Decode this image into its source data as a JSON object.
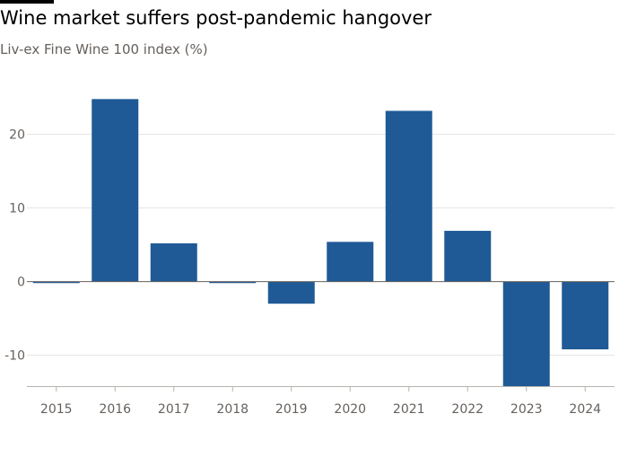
{
  "title": "Wine market suffers post-pandemic hangover",
  "subtitle": "Liv-ex Fine Wine 100 index (%)",
  "colors": {
    "bar": "#1f5a96",
    "grid": "#e6e3e0",
    "axis": "#b8b3ae",
    "zero_line": "#66605c"
  },
  "chart_data": {
    "type": "bar",
    "categories": [
      "2015",
      "2016",
      "2017",
      "2018",
      "2019",
      "2020",
      "2021",
      "2022",
      "2023",
      "2024"
    ],
    "values": [
      -0.2,
      24.8,
      5.2,
      -0.2,
      -3.0,
      5.4,
      23.2,
      6.9,
      -14.2,
      -9.2
    ],
    "yticks": [
      -10,
      0,
      10,
      20
    ],
    "ylim": [
      -14.2,
      28.5
    ],
    "grid": true,
    "title": "Wine market suffers post-pandemic hangover",
    "subtitle": "Liv-ex Fine Wine 100 index (%)",
    "xlabel": "",
    "ylabel": ""
  }
}
